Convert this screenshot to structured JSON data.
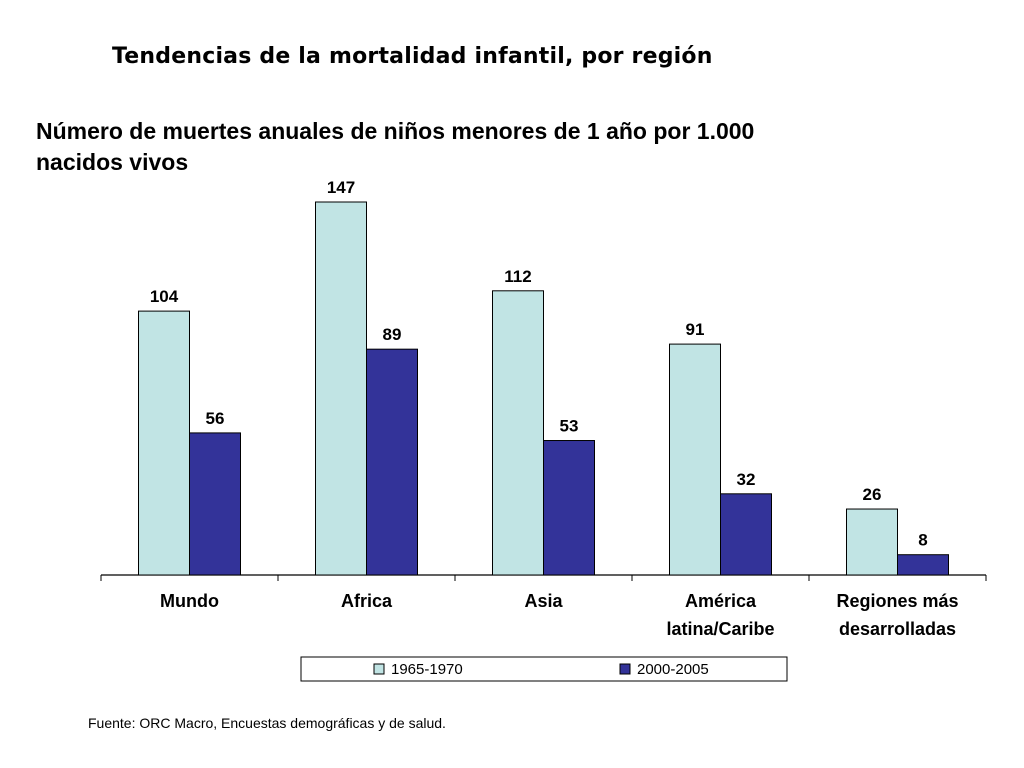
{
  "title": "Tendencias de la mortalidad infantil, por región",
  "source": "Fuente: ORC Macro, Encuestas demográficas y de salud.",
  "chart_data": {
    "type": "bar",
    "title": "Número de muertes anuales de niños menores de 1 año por 1.000 nacidos vivos",
    "xlabel": "",
    "ylabel": "",
    "categories": [
      [
        "Mundo"
      ],
      [
        "Africa"
      ],
      [
        "Asia"
      ],
      [
        "América",
        "latina/Caribe"
      ],
      [
        "Regiones más",
        "desarrolladas"
      ]
    ],
    "series": [
      {
        "name": "1965-1970",
        "values": [
          104,
          147,
          112,
          91,
          26
        ],
        "color": "#c1e4e4"
      },
      {
        "name": "2000-2005",
        "values": [
          56,
          89,
          53,
          32,
          8
        ],
        "color": "#333399"
      }
    ],
    "ylim": [
      0,
      147
    ],
    "grid": false,
    "legend_position": "bottom"
  }
}
